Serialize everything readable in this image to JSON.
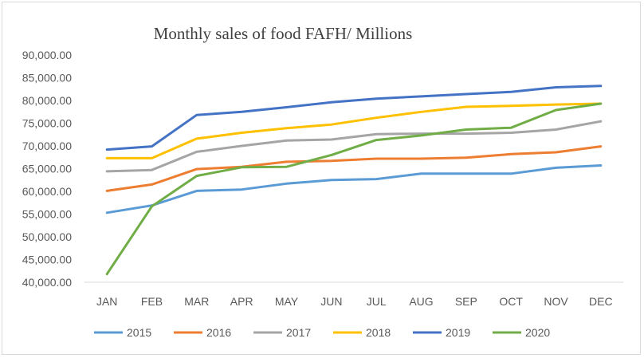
{
  "chart_data": {
    "type": "line",
    "title": "Monthly sales of food FAFH/ Millions",
    "xlabel": "",
    "ylabel": "",
    "ylim": [
      40000,
      90000
    ],
    "ystep": 5000,
    "grid": false,
    "legend_position": "bottom",
    "categories": [
      "JAN",
      "FEB",
      "MAR",
      "APR",
      "MAY",
      "JUN",
      "JUL",
      "AUG",
      "SEP",
      "OCT",
      "NOV",
      "DEC"
    ],
    "yticks": [
      "40,000.00",
      "45,000.00",
      "50,000.00",
      "55,000.00",
      "60,000.00",
      "65,000.00",
      "70,000.00",
      "75,000.00",
      "80,000.00",
      "85,000.00",
      "90,000.00"
    ],
    "series": [
      {
        "name": "2015",
        "color": "#5b9bd5",
        "values": [
          55300,
          56900,
          60100,
          60400,
          61700,
          62500,
          62700,
          63900,
          63900,
          63900,
          65200,
          65700
        ]
      },
      {
        "name": "2016",
        "color": "#ed7d31",
        "values": [
          60100,
          61500,
          64900,
          65400,
          66500,
          66700,
          67200,
          67200,
          67400,
          68200,
          68600,
          69900
        ]
      },
      {
        "name": "2017",
        "color": "#a5a5a5",
        "values": [
          64400,
          64700,
          68700,
          70000,
          71200,
          71400,
          72600,
          72700,
          72700,
          72900,
          73600,
          75400
        ]
      },
      {
        "name": "2018",
        "color": "#ffc000",
        "values": [
          67300,
          67300,
          71600,
          72900,
          73900,
          74700,
          76200,
          77500,
          78600,
          78800,
          79100,
          79300
        ]
      },
      {
        "name": "2019",
        "color": "#4472c4",
        "values": [
          69200,
          69900,
          76800,
          77500,
          78500,
          79600,
          80400,
          80900,
          81400,
          81900,
          82900,
          83200
        ]
      },
      {
        "name": "2020",
        "color": "#70ad47",
        "values": [
          41800,
          56700,
          63400,
          65300,
          65400,
          68000,
          71300,
          72300,
          73600,
          74000,
          77900,
          79300
        ]
      }
    ]
  }
}
